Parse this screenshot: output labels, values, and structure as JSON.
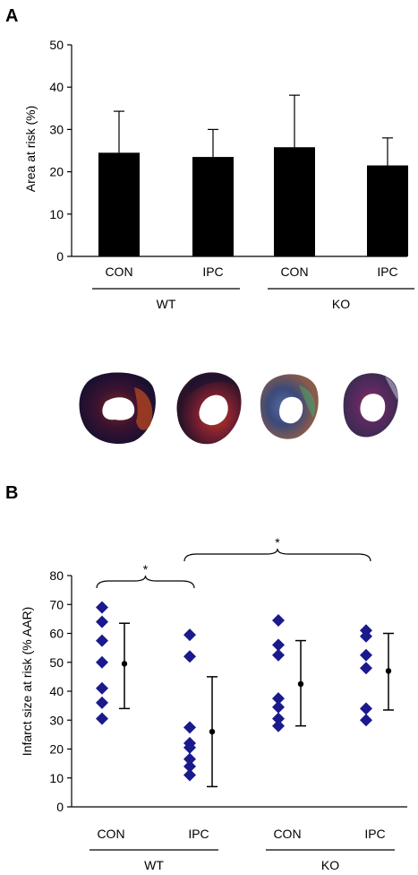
{
  "panel_a_label": "A",
  "panel_b_label": "B",
  "colors": {
    "bar": "#000000",
    "marker": "#1a1a8c",
    "axis": "#000000"
  },
  "tissue_images": [
    "heart-section-wt-con",
    "heart-section-wt-ipc",
    "heart-section-ko-con",
    "heart-section-ko-ipc"
  ],
  "chart_data": [
    {
      "type": "bar",
      "title": "",
      "xlabel": "",
      "ylabel": "Area at risk (%)",
      "ylim": [
        0,
        50
      ],
      "yticks": [
        0,
        10,
        20,
        30,
        40,
        50
      ],
      "grid": false,
      "categories": [
        "CON",
        "IPC",
        "CON",
        "IPC"
      ],
      "groups": [
        {
          "label": "WT",
          "members": [
            0,
            1
          ]
        },
        {
          "label": "KO",
          "members": [
            2,
            3
          ]
        }
      ],
      "values": [
        24.5,
        23.5,
        25.8,
        21.5
      ],
      "error_upper": [
        9.8,
        6.5,
        12.3,
        6.5
      ]
    },
    {
      "type": "scatter",
      "title": "",
      "xlabel": "",
      "ylabel": "Infarct size at risk (% AAR)",
      "ylim": [
        0,
        80
      ],
      "yticks": [
        0,
        10,
        20,
        30,
        40,
        50,
        60,
        70,
        80
      ],
      "grid": false,
      "categories": [
        "CON",
        "IPC",
        "CON",
        "IPC"
      ],
      "groups": [
        {
          "label": "WT",
          "members": [
            0,
            1
          ]
        },
        {
          "label": "KO",
          "members": [
            2,
            3
          ]
        }
      ],
      "points": [
        [
          69,
          64,
          57.5,
          50,
          41,
          36,
          30.5
        ],
        [
          59.5,
          52,
          27.5,
          22,
          20.5,
          16.5,
          14,
          11
        ],
        [
          64.5,
          56,
          52.5,
          37.5,
          34.5,
          30.5,
          28
        ],
        [
          61,
          59,
          52.5,
          48,
          34,
          30
        ]
      ],
      "mean": [
        49.5,
        26,
        42.5,
        47
      ],
      "sd_range": [
        [
          34,
          63.5
        ],
        [
          7,
          45
        ],
        [
          28,
          57.5
        ],
        [
          33.5,
          60
        ]
      ],
      "significance": [
        {
          "from": 0,
          "to": 1,
          "label": "*"
        },
        {
          "from": 1,
          "to": 3,
          "label": "*"
        }
      ]
    }
  ]
}
